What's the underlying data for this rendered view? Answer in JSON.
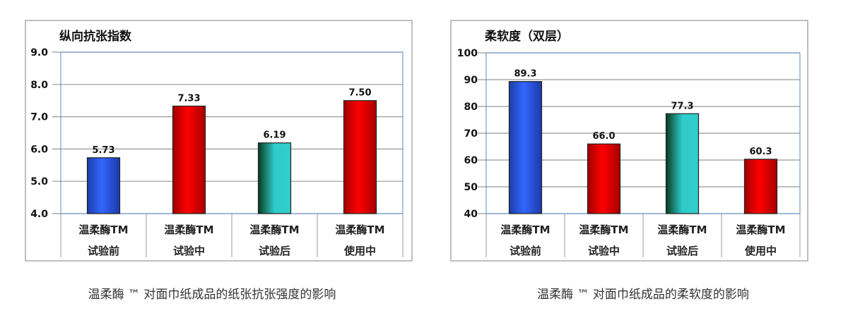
{
  "chart_data": [
    {
      "type": "bar",
      "title": "纵向抗张指数",
      "categories": [
        [
          "温柔酶TM",
          "试验前"
        ],
        [
          "温柔酶TM",
          "试验中"
        ],
        [
          "温柔酶TM",
          "试验后"
        ],
        [
          "温柔酶TM",
          "使用中"
        ]
      ],
      "values": [
        5.73,
        7.33,
        6.19,
        7.5
      ],
      "value_labels": [
        "5.73",
        "7.33",
        "6.19",
        "7.50"
      ],
      "ylim": [
        4.0,
        9.0
      ],
      "yticks": [
        "4.0",
        "5.0",
        "6.0",
        "7.0",
        "8.0",
        "9.0"
      ],
      "bar_colors": [
        "blue",
        "red",
        "teal",
        "red"
      ],
      "grid": true,
      "caption": "温柔酶 ™  对面巾纸成品的纸张抗张强度的影响"
    },
    {
      "type": "bar",
      "title": "柔软度（双层）",
      "categories": [
        [
          "温柔酶TM",
          "试验前"
        ],
        [
          "温柔酶TM",
          "试验中"
        ],
        [
          "温柔酶TM",
          "试验后"
        ],
        [
          "温柔酶TM",
          "使用中"
        ]
      ],
      "values": [
        89.3,
        66.0,
        77.3,
        60.3
      ],
      "value_labels": [
        "89.3",
        "66.0",
        "77.3",
        "60.3"
      ],
      "ylim": [
        40,
        100
      ],
      "yticks": [
        "40",
        "50",
        "60",
        "70",
        "80",
        "90",
        "100"
      ],
      "bar_colors": [
        "blue",
        "red",
        "teal",
        "red"
      ],
      "grid": true,
      "caption": "温柔酶 ™ 对面巾纸成品的柔软度的影响"
    }
  ],
  "colors": {
    "blue": "#2f62f0",
    "red": "#f00000",
    "teal": "#2ecccc",
    "grid": "#999999",
    "frame": "#aaaaaa",
    "plot_border": "#5a8ac6"
  }
}
